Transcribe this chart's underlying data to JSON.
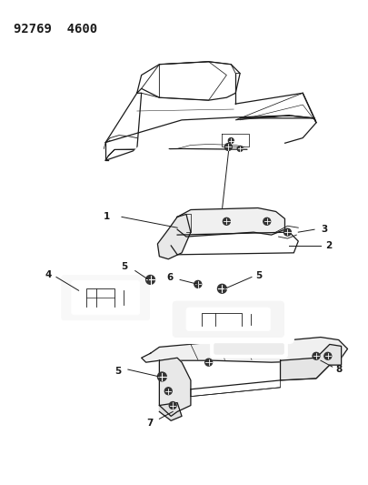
{
  "title": "92769  4600",
  "bg_color": "#ffffff",
  "line_color": "#1a1a1a",
  "figsize": [
    4.06,
    5.33
  ],
  "dpi": 100,
  "title_fontsize": 10,
  "label_fontsize": 7.5
}
